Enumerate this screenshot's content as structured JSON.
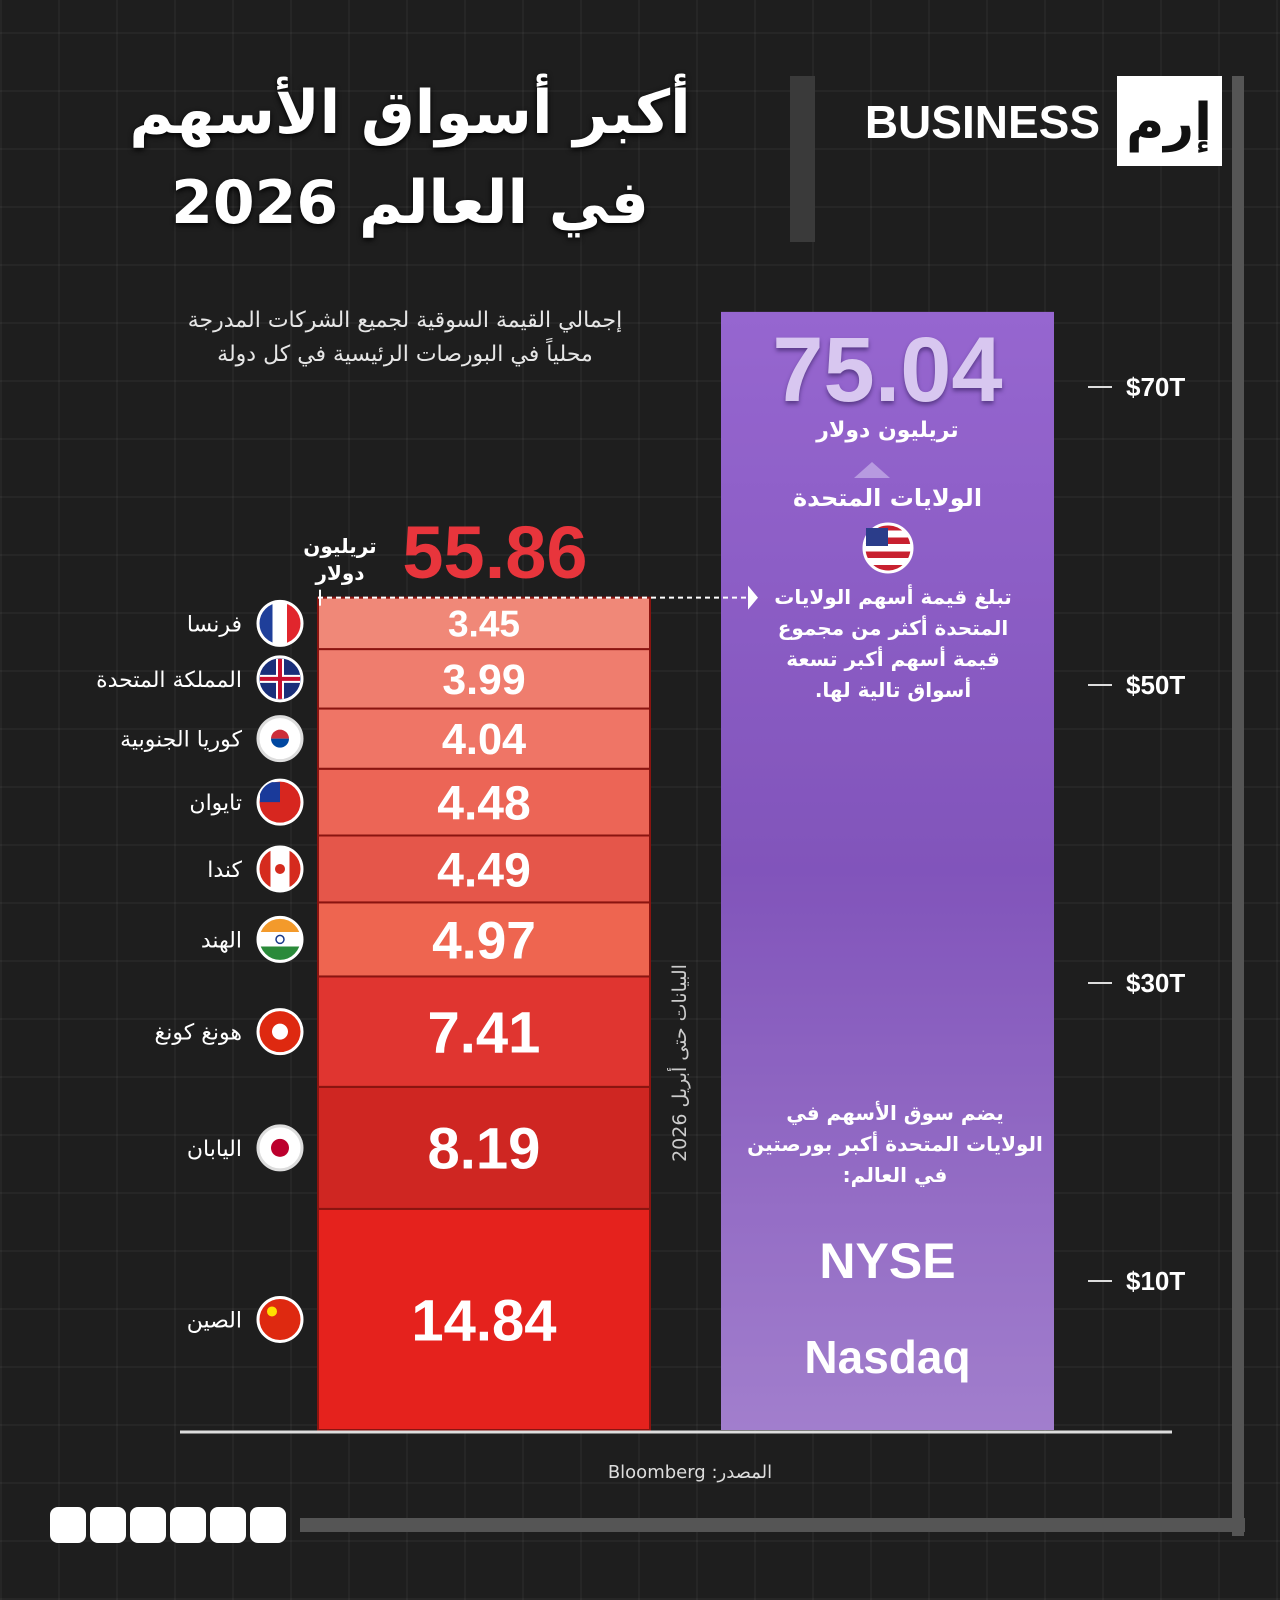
{
  "header": {
    "brand": "BUSINESS",
    "logo": "إرم",
    "title_line1": "أكبر أسواق الأسهم",
    "title_line2": "في العالم 2026"
  },
  "subtitle_line1": "إجمالي القيمة السوقية لجميع الشركات المدرجة",
  "subtitle_line2": "محلياً في البورصات الرئيسية في كل دولة",
  "chart_data": {
    "type": "bar",
    "categories": [
      "الصين",
      "اليابان",
      "هونغ كونغ",
      "الهند",
      "كندا",
      "تايوان",
      "كوريا الجنوبية",
      "المملكة المتحدة",
      "فرنسا"
    ],
    "values": [
      14.84,
      8.19,
      7.41,
      4.97,
      4.49,
      4.48,
      4.04,
      3.99,
      3.45
    ],
    "colors": [
      "#e5221d",
      "#cf2622",
      "#e03530",
      "#ee6550",
      "#e5564a",
      "#ec6556",
      "#ef7566",
      "#ef7d6e",
      "#f08878"
    ],
    "total": 55.86,
    "total_unit": "تريليون دولار",
    "leader": {
      "name": "الولايات المتحدة",
      "value": 75.04,
      "unit": "تريليون دولار",
      "color": "#8a5cc4",
      "note": "تبلغ قيمة أسهم الولايات المتحدة أكثر من مجموع قيمة أسهم أكبر تسعة أسواق تالية لها.",
      "note2": "يضم سوق الأسهم في الولايات المتحدة أكبر بورصتين في العالم:",
      "exchanges": [
        "NYSE",
        "Nasdaq"
      ]
    },
    "ylim": [
      0,
      80
    ],
    "yticks": [
      {
        "value": 10,
        "label": "$10T"
      },
      {
        "value": 30,
        "label": "$30T"
      },
      {
        "value": 50,
        "label": "$50T"
      },
      {
        "value": 70,
        "label": "$70T"
      }
    ],
    "data_note": "البيانات حتى أبريل 2026"
  },
  "source": "المصدر: Bloomberg"
}
